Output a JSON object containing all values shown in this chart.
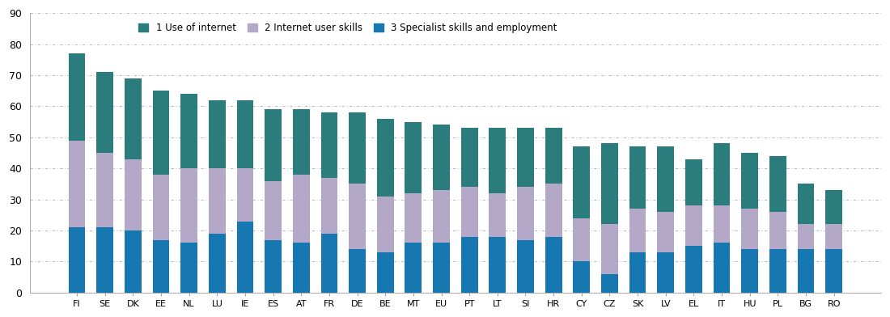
{
  "countries": [
    "FI",
    "SE",
    "DK",
    "EE",
    "NL",
    "LU",
    "IE",
    "ES",
    "AT",
    "FR",
    "DE",
    "BE",
    "MT",
    "EU",
    "PT",
    "LT",
    "SI",
    "HR",
    "CY",
    "CZ",
    "SK",
    "LV",
    "EL",
    "IT",
    "HU",
    "PL",
    "BG",
    "RO"
  ],
  "use_of_internet": [
    21,
    21,
    20,
    17,
    16,
    19,
    23,
    17,
    16,
    19,
    14,
    13,
    16,
    16,
    18,
    18,
    17,
    18,
    10,
    6,
    13,
    13,
    15,
    16,
    14,
    14,
    14,
    14
  ],
  "internet_user_skills": [
    28,
    24,
    23,
    21,
    24,
    21,
    17,
    19,
    22,
    18,
    21,
    18,
    16,
    17,
    16,
    14,
    17,
    17,
    14,
    16,
    14,
    13,
    13,
    12,
    13,
    12,
    8,
    8
  ],
  "specialist_skills": [
    28,
    26,
    26,
    27,
    24,
    22,
    22,
    23,
    21,
    21,
    23,
    25,
    23,
    21,
    19,
    21,
    19,
    18,
    23,
    26,
    20,
    21,
    15,
    20,
    18,
    18,
    13,
    11
  ],
  "color_use_internet": "#1777b0",
  "color_user_skills": "#b3a8c8",
  "color_specialist": "#2b7d7d",
  "ylim": [
    0,
    90
  ],
  "yticks": [
    0,
    10,
    20,
    30,
    40,
    50,
    60,
    70,
    80,
    90
  ],
  "legend_labels": [
    "1 Use of internet",
    "2 Internet user skills",
    "3 Specialist skills and employment"
  ],
  "background_color": "#ffffff",
  "grid_color": "#b0b0b0"
}
